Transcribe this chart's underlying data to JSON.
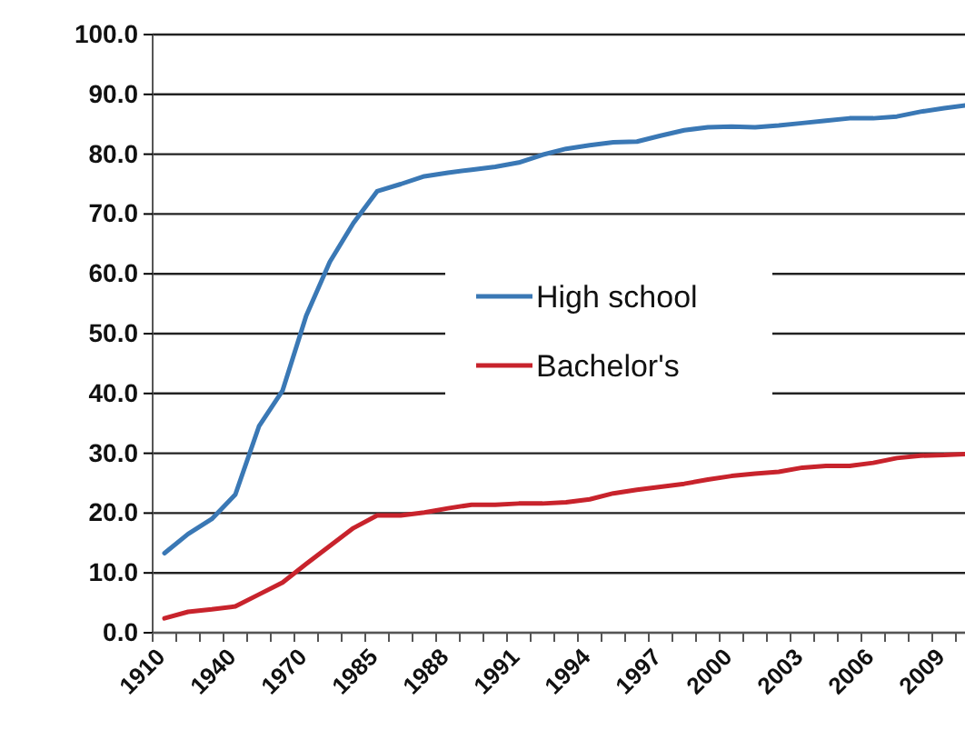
{
  "chart_data": {
    "type": "line",
    "categories": [
      "1910",
      null,
      null,
      "1940",
      null,
      null,
      "1970",
      null,
      null,
      "1985",
      null,
      null,
      "1988",
      null,
      null,
      "1991",
      null,
      null,
      "1994",
      null,
      null,
      "1997",
      null,
      null,
      "2000",
      null,
      null,
      "2003",
      null,
      null,
      "2006",
      null,
      null,
      "2009",
      null
    ],
    "series": [
      {
        "name": "High school",
        "color": "#3a78b5",
        "values": [
          13.3,
          16.5,
          19,
          23.1,
          34.5,
          40.5,
          53,
          62,
          68.5,
          73.8,
          75,
          76.3,
          76.9,
          77.4,
          77.9,
          78.6,
          79.9,
          80.9,
          81.5,
          82,
          82.1,
          83.1,
          84,
          84.5,
          84.6,
          84.5,
          84.8,
          85.2,
          85.6,
          86,
          86,
          86.3,
          87.1,
          87.7,
          88.2
        ]
      },
      {
        "name": "Bachelor's",
        "color": "#c8232c",
        "values": [
          2.4,
          3.5,
          3.9,
          4.4,
          6.4,
          8.4,
          11.5,
          14.5,
          17.5,
          19.6,
          19.6,
          20.1,
          20.8,
          21.4,
          21.4,
          21.6,
          21.6,
          21.8,
          22.3,
          23.3,
          23.9,
          24.4,
          24.9,
          25.6,
          26.2,
          26.6,
          26.9,
          27.6,
          27.9,
          27.9,
          28.4,
          29.2,
          29.6,
          29.7,
          29.9
        ]
      }
    ],
    "ylim": [
      0,
      100
    ],
    "yticks": [
      {
        "value": 0,
        "label": "0.0"
      },
      {
        "value": 10,
        "label": "10.0"
      },
      {
        "value": 20,
        "label": "20.0"
      },
      {
        "value": 30,
        "label": "30.0"
      },
      {
        "value": 40,
        "label": "40.0"
      },
      {
        "value": 50,
        "label": "50.0"
      },
      {
        "value": 60,
        "label": "60.0"
      },
      {
        "value": 70,
        "label": "70.0"
      },
      {
        "value": 80,
        "label": "80.0"
      },
      {
        "value": 90,
        "label": "90.0"
      },
      {
        "value": 100,
        "label": "100.0"
      }
    ],
    "grid": "y",
    "legend": "center",
    "marker": "none",
    "line_style": "solid"
  }
}
